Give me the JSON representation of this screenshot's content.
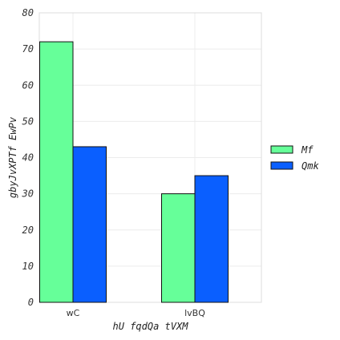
{
  "chart_data": {
    "type": "bar",
    "categories": [
      "wC",
      "lvBQ"
    ],
    "series": [
      {
        "name": "Mf",
        "values": [
          72,
          30
        ],
        "color": "#66ff99"
      },
      {
        "name": "Qmk",
        "values": [
          43,
          35
        ],
        "color": "#0a5fff"
      }
    ],
    "xlabel": "hU fqdQa tVXM",
    "ylabel": "gbyJvXPTf EwPv",
    "ylim": [
      0,
      80
    ],
    "yticks": [
      0,
      10,
      20,
      30,
      40,
      50,
      60,
      70,
      80
    ],
    "grid": true,
    "legend_position": "right"
  }
}
